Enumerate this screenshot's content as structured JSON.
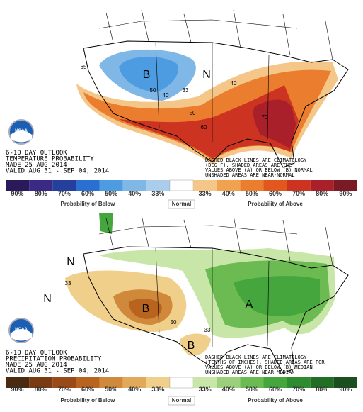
{
  "panels": [
    {
      "logo": "NOAA",
      "title": "6-10 DAY OUTLOOK",
      "subtitle": "TEMPERATURE PROBABILITY",
      "made": "MADE 25 AUG 2014",
      "valid": "VALID AUG 31 - SEP 04, 2014",
      "notes": [
        "DASHED BLACK LINES ARE CLIMATOLOGY",
        "(DEG F). SHADED AREAS ARE THE",
        "VALUES ABOVE (A) OR BELOW (B) NORMAL",
        "UNSHADED AREAS ARE NEAR-NORMAL"
      ],
      "map_labels": [
        "B",
        "N",
        "50",
        "40",
        "33",
        "40",
        "50",
        "60",
        "70",
        "65"
      ],
      "legend": {
        "below_label": "Probability of Below",
        "normal_label": "Normal",
        "above_label": "Probability of Above",
        "below": [
          {
            "label": "90%",
            "color": "#2b1a5a"
          },
          {
            "label": "80%",
            "color": "#3a2a86"
          },
          {
            "label": "70%",
            "color": "#243f9c"
          },
          {
            "label": "60%",
            "color": "#2c6fd2"
          },
          {
            "label": "50%",
            "color": "#4d9be0"
          },
          {
            "label": "40%",
            "color": "#7fb7e6"
          },
          {
            "label": "33%",
            "color": "#a9cdea"
          }
        ],
        "normal_color": "#ffffff",
        "above": [
          {
            "label": "33%",
            "color": "#f4c688"
          },
          {
            "label": "40%",
            "color": "#f0a24e"
          },
          {
            "label": "50%",
            "color": "#ea7e2e"
          },
          {
            "label": "60%",
            "color": "#e2571e"
          },
          {
            "label": "70%",
            "color": "#cc3320"
          },
          {
            "label": "80%",
            "color": "#a9202a"
          },
          {
            "label": "90%",
            "color": "#7a1a24"
          }
        ]
      }
    },
    {
      "logo": "NOAA",
      "title": "6-10 DAY OUTLOOK",
      "subtitle": "PRECIPITATION PROBABILITY",
      "made": "MADE 25 AUG 2014",
      "valid": "VALID AUG 31 - SEP 04, 2014",
      "notes": [
        "DASHED BLACK LINES ARE CLIMATOLOGY",
        "(TENTHS OF INCHES). SHADED AREAS ARE FOR",
        "VALUES ABOVE (A) OR BELOW (B) MEDIAN",
        "UNSHADED AREAS ARE NEAR-MEDIAN"
      ],
      "map_labels": [
        "N",
        "N",
        "B",
        "A",
        "B",
        "33",
        "50",
        "33"
      ],
      "legend": {
        "below_label": "Probability of Below",
        "normal_label": "Normal",
        "above_label": "Probability of Above",
        "below": [
          {
            "label": "90%",
            "color": "#4a2a10"
          },
          {
            "label": "80%",
            "color": "#7a3a12"
          },
          {
            "label": "70%",
            "color": "#9a4a16"
          },
          {
            "label": "60%",
            "color": "#b8641e"
          },
          {
            "label": "50%",
            "color": "#d0883a"
          },
          {
            "label": "40%",
            "color": "#e0aa5a"
          },
          {
            "label": "33%",
            "color": "#f0cf8a"
          }
        ],
        "normal_color": "#ffffff",
        "above": [
          {
            "label": "33%",
            "color": "#c8e6a8"
          },
          {
            "label": "40%",
            "color": "#9ccf7c"
          },
          {
            "label": "50%",
            "color": "#6cba52"
          },
          {
            "label": "60%",
            "color": "#44a63c"
          },
          {
            "label": "70%",
            "color": "#2e8c30"
          },
          {
            "label": "80%",
            "color": "#236e26"
          },
          {
            "label": "90%",
            "color": "#1a5020"
          }
        ]
      }
    }
  ]
}
